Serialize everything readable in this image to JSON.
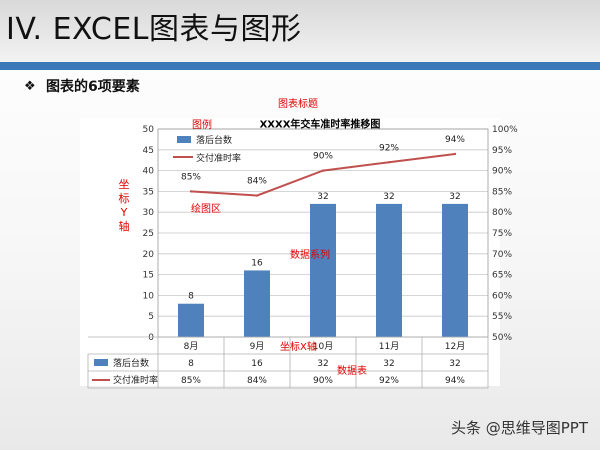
{
  "header": {
    "title": "IV. EXCEL图表与图形",
    "bullet_icon": "diamond-bullet-icon",
    "bullet_text": "图表的6项要素"
  },
  "annotations": {
    "chart_title": "图表标题",
    "legend": "图例",
    "y_axis": "坐标Y轴",
    "plot_area": "绘图区",
    "data_series": "数据系列",
    "x_axis": "坐标X轴",
    "data_table": "数据表"
  },
  "watermark": "头条 @思维导图PPT",
  "colors": {
    "bar": "#4f81bd",
    "line": "#c0504d",
    "accent": "#3b78b9",
    "annotation": "#e00000"
  },
  "chart_data": {
    "type": "bar",
    "title": "XXXX年交车准时率推移图",
    "categories": [
      "8月",
      "9月",
      "10月",
      "11月",
      "12月"
    ],
    "series": [
      {
        "name": "落后台数",
        "type": "bar",
        "axis": "left",
        "values": [
          8,
          16,
          32,
          32,
          32
        ],
        "labels": [
          "8",
          "16",
          "32",
          "32",
          "32"
        ]
      },
      {
        "name": "交付准时率",
        "type": "line",
        "axis": "right",
        "values": [
          85,
          84,
          90,
          92,
          94
        ],
        "labels": [
          "85%",
          "84%",
          "90%",
          "92%",
          "94%"
        ]
      }
    ],
    "y_left": {
      "min": 0,
      "max": 50,
      "step": 5,
      "ticks": [
        "0",
        "5",
        "10",
        "15",
        "20",
        "25",
        "30",
        "35",
        "40",
        "45",
        "50"
      ]
    },
    "y_right": {
      "min": 50,
      "max": 100,
      "step": 5,
      "ticks": [
        "50%",
        "55%",
        "60%",
        "65%",
        "70%",
        "75%",
        "80%",
        "85%",
        "90%",
        "95%",
        "100%"
      ]
    },
    "grid": true,
    "legend_position": "top-left",
    "data_table": true
  }
}
